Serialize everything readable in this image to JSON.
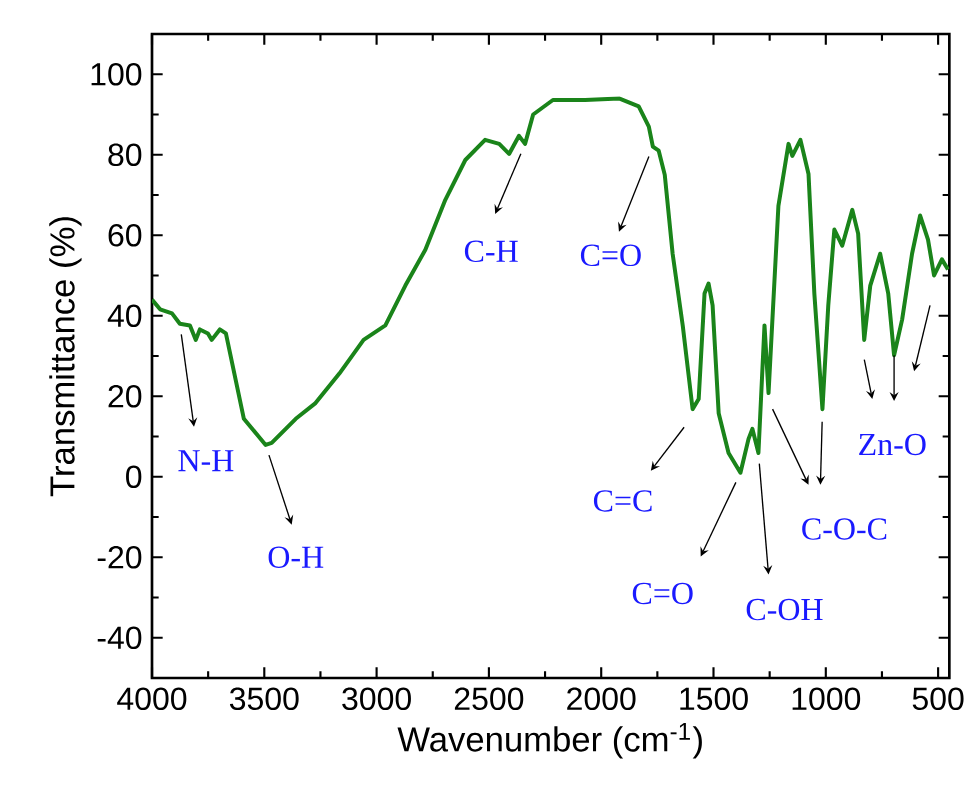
{
  "chart_data": {
    "type": "line",
    "xlabel": "Wavenumber (cm$^{-1}$)",
    "ylabel": "Transmittance (%)",
    "xlim": [
      4000,
      450
    ],
    "ylim": [
      -50,
      110
    ],
    "xticks": [
      4000,
      3500,
      3000,
      2500,
      2000,
      1500,
      1000,
      500
    ],
    "yticks": [
      -40,
      -20,
      0,
      20,
      40,
      60,
      80,
      100
    ],
    "grid": false,
    "marker": "none",
    "line_style": "solid",
    "x": [
      4000,
      3964,
      3911,
      3876,
      3831,
      3805,
      3787,
      3751,
      3734,
      3698,
      3671,
      3591,
      3494,
      3467,
      3360,
      3272,
      3165,
      3058,
      2961,
      2872,
      2783,
      2694,
      2605,
      2517,
      2454,
      2410,
      2366,
      2339,
      2303,
      2215,
      2072,
      1921,
      1833,
      1788,
      1770,
      1744,
      1717,
      1682,
      1637,
      1593,
      1566,
      1540,
      1522,
      1504,
      1477,
      1433,
      1380,
      1344,
      1327,
      1300,
      1273,
      1255,
      1211,
      1166,
      1149,
      1113,
      1077,
      1051,
      1015,
      989,
      962,
      927,
      882,
      856,
      829,
      802,
      758,
      722,
      696,
      660,
      616,
      580,
      545,
      518,
      483,
      456
    ],
    "series": [
      {
        "color": "#1a841a",
        "values": [
          44,
          41.6,
          40.6,
          38,
          37.6,
          34,
          36.6,
          35.6,
          34,
          36.6,
          35.6,
          14.4,
          7.9,
          8.4,
          14.4,
          18.3,
          25.7,
          34,
          37.6,
          47.5,
          56.4,
          68.8,
          78.7,
          83.7,
          82.7,
          80.2,
          84.7,
          82.7,
          90,
          93.6,
          93.6,
          94,
          92,
          87,
          82,
          81,
          75,
          55.4,
          37.6,
          16.8,
          19.3,
          45.5,
          48,
          42.6,
          15.8,
          5.9,
          1,
          9.4,
          11.9,
          5.9,
          37.6,
          20.8,
          67.3,
          82.7,
          79.7,
          83.7,
          75.2,
          45.5,
          16.8,
          42.6,
          61.4,
          57.4,
          66.3,
          60.4,
          34,
          47.5,
          55.4,
          45.5,
          30.2,
          39.1,
          55.4,
          64.9,
          58.9,
          50,
          54,
          51.5
        ]
      }
    ],
    "annotations": [
      {
        "text": "N-H",
        "x": 3876,
        "y": 38
      },
      {
        "text": "O-H",
        "x": 3494,
        "y": 7.9
      },
      {
        "text": "C-H",
        "x": 2339,
        "y": 82.7
      },
      {
        "text": "C=O",
        "x": 1770,
        "y": 82
      },
      {
        "text": "C=C",
        "x": 1602,
        "y": 14.4
      },
      {
        "text": "C=O",
        "x": 1380,
        "y": 1
      },
      {
        "text": "C-OH",
        "x": 1300,
        "y": 5.9
      },
      {
        "text": "C-O-C",
        "x": 1015,
        "y": 16.3
      },
      {
        "text": "Zn-O",
        "x": 838,
        "y": 31.7
      }
    ]
  }
}
